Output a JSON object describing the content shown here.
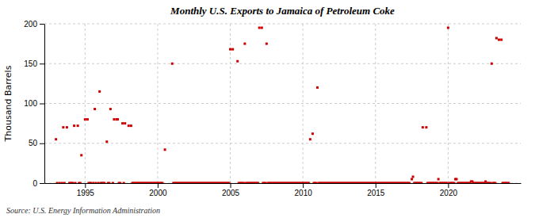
{
  "chart_data": {
    "type": "scatter",
    "title": "Monthly U.S. Exports to Jamaica of Petroleum Coke",
    "ylabel": "Thousand Barrels",
    "source": "Source: U.S. Energy Information Administration",
    "color": "#cc0000",
    "marker": "square",
    "grid": true,
    "xlim": [
      1992.2,
      2025.0
    ],
    "ylim": [
      0,
      200
    ],
    "xticks": [
      1995,
      2000,
      2005,
      2010,
      2015,
      2020
    ],
    "yticks": [
      0,
      50,
      100,
      150,
      200
    ],
    "x": [
      1993.0,
      1993.5,
      1993.75,
      1994.25,
      1994.5,
      1994.75,
      1995.0,
      1995.17,
      1995.67,
      1996.0,
      1996.5,
      1996.75,
      1997.0,
      1997.17,
      1997.25,
      1997.58,
      1997.75,
      1998.0,
      1998.17,
      2000.5,
      2001.0,
      2005.0,
      2005.17,
      2005.5,
      2006.0,
      2007.0,
      2007.17,
      2007.5,
      2010.5,
      2010.67,
      2011.0,
      2018.25,
      2018.5,
      2020.0,
      2023.0,
      2023.33,
      2023.5,
      2023.67,
      1993.08,
      1993.25,
      1993.42,
      1993.58,
      1993.92,
      1994.0,
      1994.08,
      1994.17,
      1994.33,
      1994.58,
      1994.67,
      1995.25,
      1995.33,
      1995.42,
      1995.58,
      1995.75,
      1995.92,
      1996.08,
      1996.17,
      1996.25,
      1996.33,
      1996.58,
      1996.67,
      1996.92,
      1997.33,
      1997.42,
      1997.67,
      1998.25,
      1998.33,
      1998.42,
      1998.5,
      1998.58,
      1998.67,
      1998.75,
      1998.83,
      1998.92,
      1999.0,
      1999.08,
      1999.17,
      1999.25,
      1999.33,
      1999.42,
      1999.5,
      1999.58,
      1999.67,
      1999.75,
      1999.83,
      1999.92,
      2000.0,
      2000.08,
      2000.17,
      2000.25,
      2000.33,
      2001.08,
      2001.17,
      2001.25,
      2001.33,
      2001.42,
      2001.5,
      2001.58,
      2001.67,
      2001.75,
      2001.83,
      2001.92,
      2002.0,
      2002.08,
      2002.17,
      2002.25,
      2002.33,
      2002.42,
      2002.5,
      2002.58,
      2002.67,
      2002.75,
      2002.83,
      2002.92,
      2003.0,
      2003.08,
      2003.17,
      2003.25,
      2003.33,
      2003.42,
      2003.5,
      2003.58,
      2003.67,
      2003.75,
      2003.83,
      2003.92,
      2004.0,
      2004.08,
      2004.17,
      2004.25,
      2004.33,
      2004.42,
      2004.5,
      2004.58,
      2004.67,
      2004.75,
      2004.83,
      2004.92,
      2005.58,
      2005.67,
      2005.75,
      2005.83,
      2005.92,
      2006.08,
      2006.17,
      2006.25,
      2006.33,
      2006.42,
      2006.5,
      2006.58,
      2006.67,
      2006.75,
      2006.83,
      2006.92,
      2007.25,
      2007.33,
      2007.42,
      2007.58,
      2007.67,
      2007.75,
      2007.83,
      2007.92,
      2008.0,
      2008.08,
      2008.17,
      2008.25,
      2008.33,
      2008.42,
      2008.5,
      2008.58,
      2008.67,
      2008.75,
      2008.83,
      2008.92,
      2009.0,
      2009.08,
      2009.17,
      2009.25,
      2009.33,
      2009.42,
      2009.5,
      2009.58,
      2009.67,
      2009.75,
      2009.83,
      2009.92,
      2010.0,
      2010.08,
      2010.17,
      2010.25,
      2010.33,
      2010.42,
      2010.75,
      2010.83,
      2010.92,
      2011.08,
      2011.17,
      2011.25,
      2011.33,
      2011.42,
      2011.5,
      2011.58,
      2011.67,
      2011.75,
      2011.83,
      2011.92,
      2012.0,
      2012.08,
      2012.17,
      2012.25,
      2012.33,
      2012.42,
      2012.5,
      2012.58,
      2012.67,
      2012.75,
      2012.83,
      2012.92,
      2013.0,
      2013.08,
      2013.17,
      2013.25,
      2013.33,
      2013.42,
      2013.5,
      2013.58,
      2013.67,
      2013.75,
      2013.83,
      2013.92,
      2014.0,
      2014.08,
      2014.17,
      2014.25,
      2014.33,
      2014.42,
      2014.5,
      2014.58,
      2014.67,
      2014.75,
      2014.83,
      2014.92,
      2015.0,
      2015.08,
      2015.17,
      2015.25,
      2015.33,
      2015.42,
      2015.5,
      2015.58,
      2015.67,
      2015.75,
      2015.83,
      2015.92,
      2016.0,
      2016.08,
      2016.17,
      2016.25,
      2016.33,
      2016.42,
      2016.5,
      2016.58,
      2016.67,
      2016.75,
      2016.83,
      2016.92,
      2017.0,
      2017.08,
      2017.17,
      2017.25,
      2017.33,
      2017.5,
      2017.58,
      2017.67,
      2017.75,
      2017.83,
      2017.92,
      2018.0,
      2018.08,
      2018.17,
      2018.58,
      2018.67,
      2018.75,
      2018.83,
      2018.92,
      2019.0,
      2019.08,
      2019.17,
      2019.25,
      2019.33,
      2019.42,
      2019.5,
      2019.58,
      2019.67,
      2019.75,
      2019.83,
      2019.92,
      2020.08,
      2020.17,
      2020.25,
      2020.33,
      2020.42,
      2020.5,
      2020.58,
      2020.67,
      2020.75,
      2020.83,
      2020.92,
      2021.0,
      2021.08,
      2021.17,
      2021.25,
      2021.33,
      2021.42,
      2021.5,
      2021.58,
      2021.67,
      2021.75,
      2021.83,
      2021.92,
      2022.0,
      2022.08,
      2022.17,
      2022.25,
      2022.33,
      2022.42,
      2022.5,
      2022.58,
      2022.67,
      2022.75,
      2022.83,
      2022.92,
      2023.08,
      2023.17,
      2023.25,
      2023.75,
      2023.83,
      2023.92,
      2024.0,
      2024.08,
      2024.17
    ],
    "values": [
      55,
      70,
      70,
      72,
      72,
      35,
      80,
      80,
      93,
      115,
      52,
      93,
      80,
      80,
      80,
      75,
      75,
      72,
      72,
      42,
      150,
      168,
      168,
      153,
      175,
      195,
      195,
      175,
      55,
      62,
      120,
      70,
      70,
      195,
      150,
      182,
      180,
      180,
      0,
      0,
      0,
      0,
      0,
      0,
      0,
      0,
      0,
      0,
      0,
      0,
      0,
      0,
      0,
      0,
      0,
      0,
      0,
      0,
      0,
      0,
      0,
      0,
      0,
      0,
      0,
      0,
      0,
      0,
      0,
      0,
      0,
      0,
      0,
      0,
      0,
      0,
      0,
      0,
      0,
      0,
      0,
      0,
      0,
      0,
      0,
      0,
      0,
      0,
      0,
      0,
      0,
      0,
      0,
      0,
      0,
      0,
      0,
      0,
      0,
      0,
      0,
      0,
      0,
      0,
      0,
      0,
      0,
      0,
      0,
      0,
      0,
      0,
      0,
      0,
      0,
      0,
      0,
      0,
      0,
      0,
      0,
      0,
      0,
      0,
      0,
      0,
      0,
      0,
      0,
      0,
      0,
      0,
      0,
      0,
      0,
      0,
      0,
      0,
      0,
      0,
      0,
      0,
      0,
      0,
      0,
      0,
      0,
      0,
      0,
      0,
      0,
      0,
      0,
      0,
      0,
      0,
      0,
      0,
      0,
      0,
      0,
      0,
      0,
      0,
      0,
      0,
      0,
      0,
      0,
      0,
      0,
      0,
      0,
      0,
      0,
      0,
      0,
      0,
      0,
      0,
      0,
      0,
      0,
      0,
      0,
      0,
      0,
      0,
      0,
      0,
      0,
      0,
      0,
      0,
      0,
      0,
      0,
      0,
      0,
      0,
      0,
      0,
      0,
      0,
      0,
      0,
      0,
      0,
      0,
      0,
      0,
      0,
      0,
      0,
      0,
      0,
      0,
      0,
      0,
      0,
      0,
      0,
      0,
      0,
      0,
      0,
      0,
      0,
      0,
      0,
      0,
      0,
      0,
      0,
      0,
      0,
      0,
      0,
      0,
      0,
      0,
      0,
      0,
      0,
      0,
      0,
      0,
      0,
      0,
      0,
      0,
      0,
      0,
      0,
      0,
      0,
      0,
      0,
      0,
      0,
      0,
      0,
      0,
      0,
      0,
      0,
      0,
      0,
      0,
      0,
      0,
      5,
      8,
      0,
      0,
      0,
      0,
      0,
      0,
      0,
      0,
      0,
      0,
      0,
      0,
      0,
      0,
      0,
      0,
      5,
      0,
      0,
      0,
      0,
      0,
      0,
      0,
      0,
      0,
      0,
      0,
      0,
      5,
      5,
      0,
      0,
      0,
      0,
      0,
      0,
      0,
      0,
      0,
      0,
      0,
      2,
      2,
      0,
      0,
      0,
      0,
      0,
      0,
      0,
      0,
      0,
      0,
      2,
      0,
      0,
      0,
      0,
      0,
      0,
      0,
      0,
      0,
      0,
      0,
      0,
      0
    ]
  }
}
